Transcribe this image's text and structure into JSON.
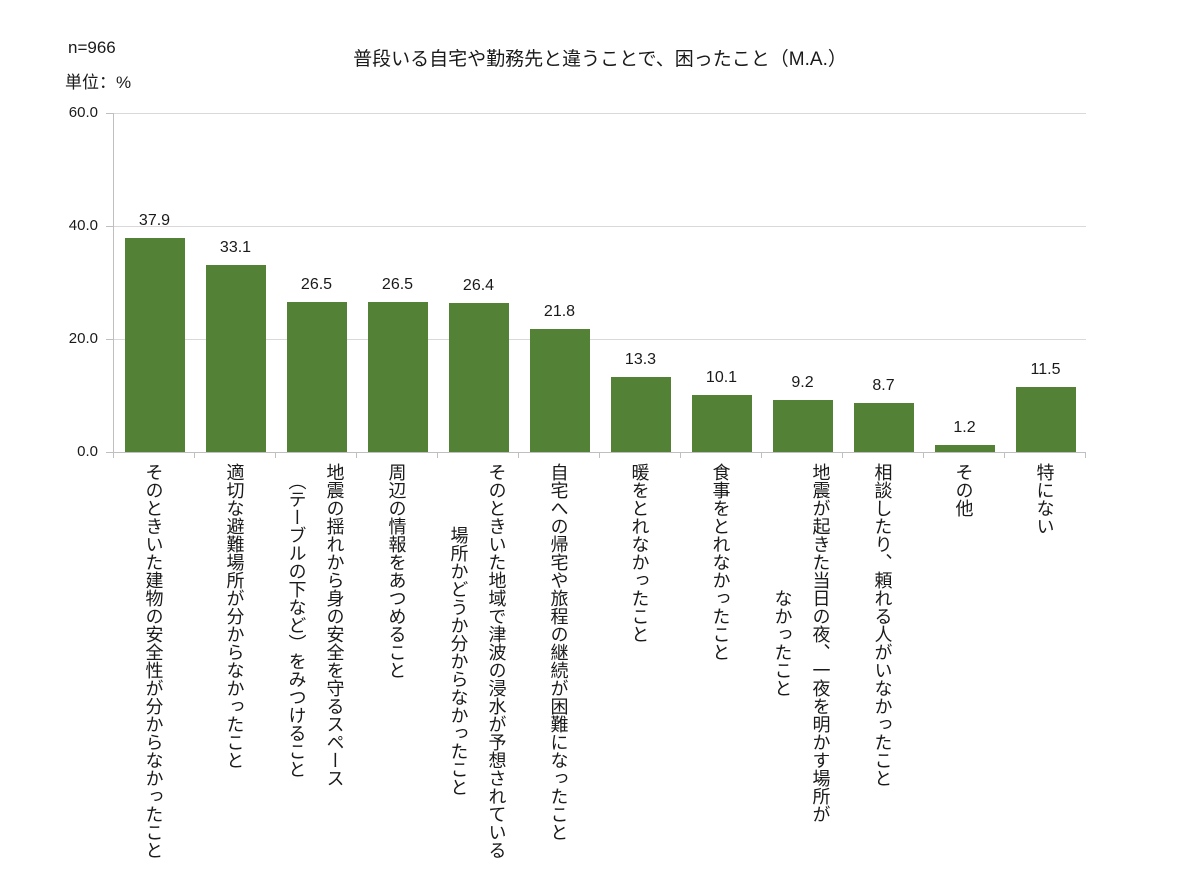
{
  "header": {
    "sample_size": "n=966",
    "unit_label": "単位：%",
    "title": "普段いる自宅や勤務先と違うことで、困ったこと（M.A.）"
  },
  "axis": {
    "y_ticks": [
      "60.0",
      "40.0",
      "20.0",
      "0.0"
    ]
  },
  "chart_data": {
    "type": "bar",
    "title": "普段いる自宅や勤務先と違うことで、困ったこと（M.A.）",
    "sample_size": "n=966",
    "unit": "%",
    "categories": [
      "そのときいた建物の安全性が分からなかったこと",
      "適切な避難場所が分からなかったこと",
      "地震の揺れから身の安全を守るスペース\n（テーブルの下など）をみつけること",
      "周辺の情報をあつめること",
      "そのときいた地域で津波の浸水が予想されている\n場所かどうか分からなかったこと",
      "自宅への帰宅や旅程の継続が困難になったこと",
      "暖をとれなかったこと",
      "食事をとれなかったこと",
      "地震が起きた当日の夜、一夜を明かす場所が\nなかったこと",
      "相談したり、頼れる人がいなかったこと",
      "その他",
      "特にない"
    ],
    "values": [
      37.9,
      33.1,
      26.5,
      26.5,
      26.4,
      21.8,
      13.3,
      10.1,
      9.2,
      8.7,
      1.2,
      11.5
    ],
    "ylim": [
      0,
      60
    ],
    "y_tick_interval": 20,
    "grid": true,
    "legend": "none",
    "value_labels": true,
    "bar_color": "#538135"
  },
  "colors": {
    "bar": "#538135",
    "gridline": "#d9d9d9",
    "axis": "#bfbfbf",
    "text": "#1a1a1a"
  }
}
